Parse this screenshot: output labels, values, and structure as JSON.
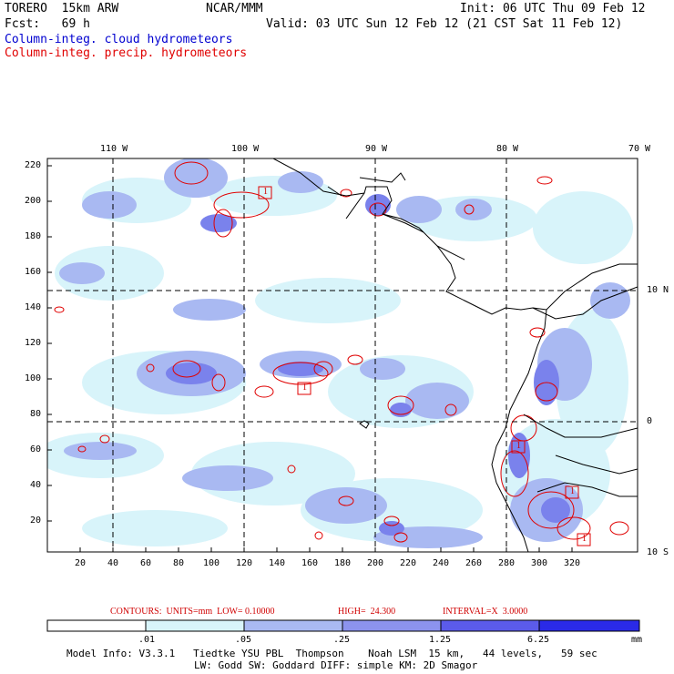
{
  "header": {
    "model": "TORERO  15km ARW",
    "center": "NCAR/MMM",
    "init": "Init: 06 UTC Thu 09 Feb 12",
    "fcst": "Fcst:   69 h",
    "valid": "Valid: 03 UTC Sun 12 Feb 12 (21 CST Sat 11 Feb 12)",
    "field1": "Column-integ. cloud hydrometeors",
    "field2": "Column-integ. precip. hydrometeors"
  },
  "map": {
    "lon_labels": [
      "110 W",
      "100 W",
      "90 W",
      "80 W",
      "70 W"
    ],
    "lat_labels": [
      "10 N",
      "0",
      "10 S"
    ],
    "y_ticks": [
      "220",
      "200",
      "180",
      "160",
      "140",
      "120",
      "100",
      "80",
      "60",
      "40",
      "20"
    ],
    "x_ticks": [
      "20",
      "40",
      "60",
      "80",
      "100",
      "120",
      "140",
      "160",
      "180",
      "200",
      "220",
      "240",
      "260",
      "280",
      "300",
      "320"
    ],
    "box_labels": [
      "1",
      "1",
      "1",
      "1",
      "1"
    ]
  },
  "contour_caption": {
    "units": "CONTOURS:  UNITS=mm  LOW= 0.10000",
    "high": "HIGH=  24.300",
    "interval": "INTERVAL=X  3.0000"
  },
  "colorbar": {
    "labels": [
      ".01",
      ".05",
      ".25",
      "1.25",
      "6.25"
    ],
    "unit": "mm",
    "colors": [
      "#ffffff",
      "#d8f4fa",
      "#a9b9f2",
      "#8c93ee",
      "#5b5bea",
      "#2a2ae8"
    ]
  },
  "footer": {
    "line1": "Model Info: V3.3.1   Tiedtke YSU PBL  Thompson    Noah LSM  15 km,   44 levels,   59 sec",
    "line2": "LW: Godd SW: Goddard DIFF: simple KM: 2D Smagor"
  }
}
